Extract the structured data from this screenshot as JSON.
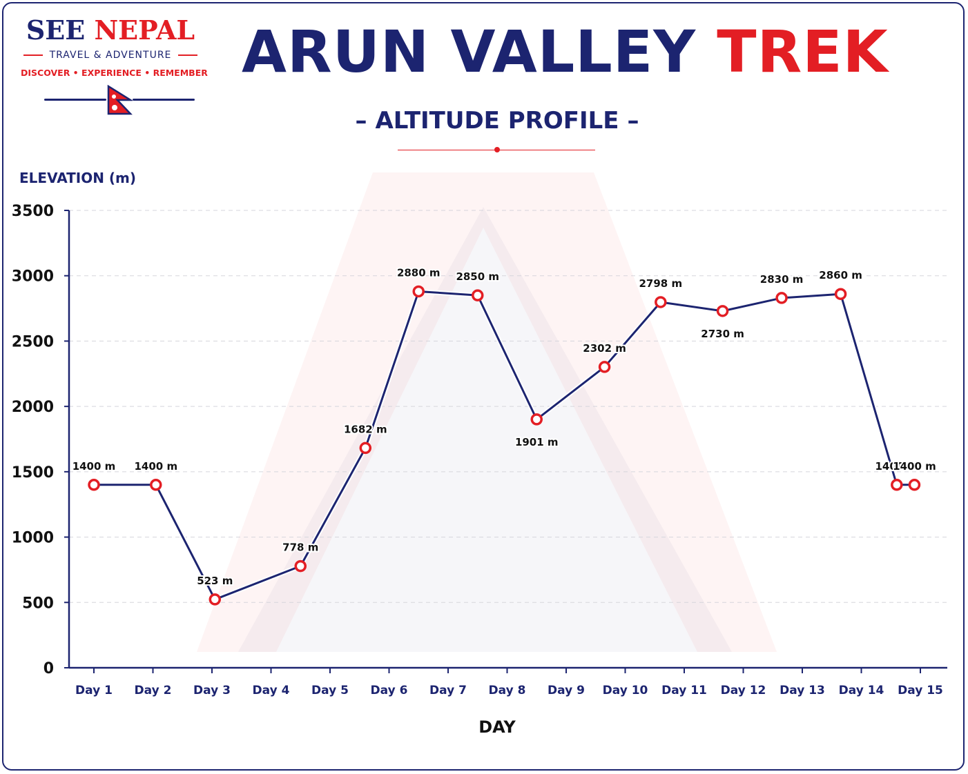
{
  "brand": {
    "name_part1": "SEE",
    "name_part2": "NEPAL",
    "tagline": "TRAVEL & ADVENTURE",
    "motto": "DISCOVER • EXPERIENCE • REMEMBER"
  },
  "header": {
    "title_part1": "ARUN VALLEY",
    "title_part2": "TREK",
    "subtitle": "ALTITUDE PROFILE"
  },
  "colors": {
    "navy": "#1c2470",
    "red": "#e31e24"
  },
  "chart_data": {
    "type": "line",
    "title": "ARUN VALLEY TREK",
    "subtitle": "ALTITUDE PROFILE",
    "xlabel": "DAY",
    "ylabel": "ELEVATION (m)",
    "ylim": [
      0,
      3500
    ],
    "yticks": [
      0,
      500,
      1000,
      1500,
      2000,
      2500,
      3000,
      3500
    ],
    "grid": true,
    "legend": "none",
    "categories": [
      "Day 1",
      "Day 2",
      "Day 3",
      "Day 4",
      "Day 5",
      "Day 6",
      "Day 7",
      "Day 8",
      "Day 9",
      "Day 10",
      "Day 11",
      "Day 12",
      "Day 13",
      "Day 14",
      "Day 15"
    ],
    "points": [
      {
        "x": 1.0,
        "y": 1400,
        "label": "1400 m"
      },
      {
        "x": 2.05,
        "y": 1400,
        "label": "1400 m"
      },
      {
        "x": 3.05,
        "y": 523,
        "label": "523 m"
      },
      {
        "x": 4.5,
        "y": 778,
        "label": "778 m"
      },
      {
        "x": 5.6,
        "y": 1682,
        "label": "1682 m"
      },
      {
        "x": 6.5,
        "y": 2880,
        "label": "2880 m"
      },
      {
        "x": 7.5,
        "y": 2850,
        "label": "2850 m"
      },
      {
        "x": 8.5,
        "y": 1901,
        "label": "1901 m"
      },
      {
        "x": 9.65,
        "y": 2302,
        "label": "2302 m"
      },
      {
        "x": 10.6,
        "y": 2798,
        "label": "2798 m"
      },
      {
        "x": 11.65,
        "y": 2730,
        "label": "2730 m"
      },
      {
        "x": 12.65,
        "y": 2830,
        "label": "2830 m"
      },
      {
        "x": 13.65,
        "y": 2860,
        "label": "2860 m"
      },
      {
        "x": 14.6,
        "y": 1400,
        "label": "1400 m"
      },
      {
        "x": 14.9,
        "y": 1400,
        "label": "1400 m"
      }
    ]
  }
}
